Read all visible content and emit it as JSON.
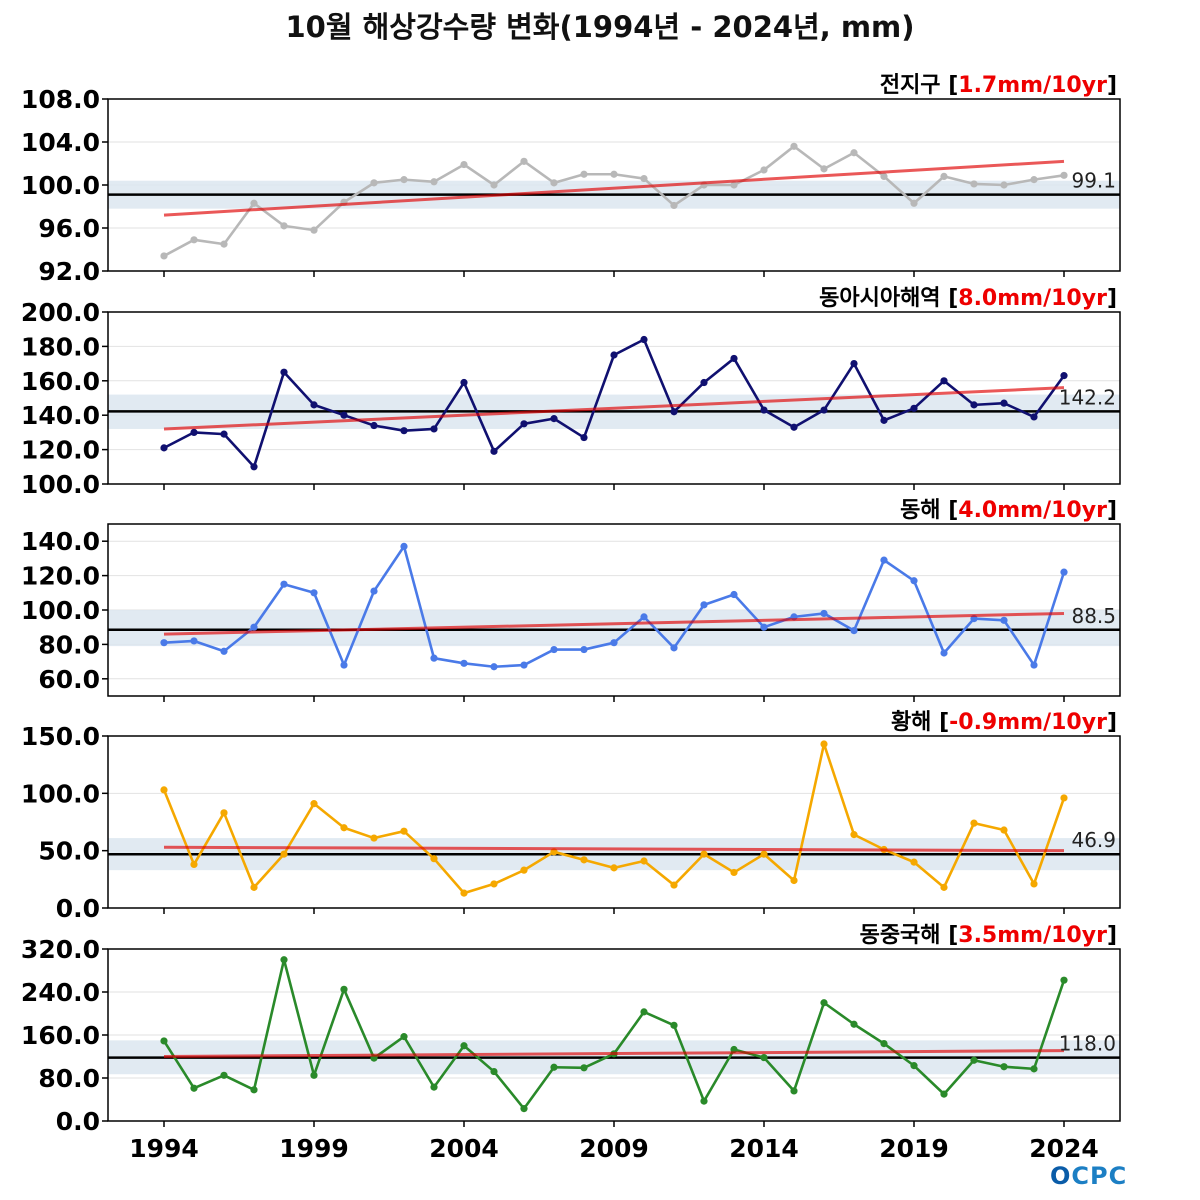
{
  "title": "10월 해상강수량 변화(1994년 - 2024년, mm)",
  "logo_text": "CPC",
  "colors": {
    "trend": "#e00000",
    "mean_line": "#000000",
    "band": "#dce6f0",
    "trend_text": "#ee0000"
  },
  "chart_data": [
    {
      "type": "line",
      "name": "전지구",
      "trend_label": "1.7mm/10yr",
      "color": "#b8b8b8",
      "ylim": [
        92,
        108
      ],
      "yticks": [
        92,
        96,
        100,
        104,
        108
      ],
      "mean": 99.1,
      "mean_label": "99.1",
      "band": [
        97.8,
        100.4
      ],
      "trend": [
        97.2,
        102.2
      ],
      "x": [
        1994,
        1995,
        1996,
        1997,
        1998,
        1999,
        2000,
        2001,
        2002,
        2003,
        2004,
        2005,
        2006,
        2007,
        2008,
        2009,
        2010,
        2011,
        2012,
        2013,
        2014,
        2015,
        2016,
        2017,
        2018,
        2019,
        2020,
        2021,
        2022,
        2023,
        2024
      ],
      "values": [
        93.4,
        94.9,
        94.5,
        98.3,
        96.2,
        95.8,
        98.4,
        100.2,
        100.5,
        100.3,
        101.9,
        100.0,
        102.2,
        100.2,
        101.0,
        101.0,
        100.6,
        98.1,
        100.0,
        100.0,
        101.4,
        103.6,
        101.5,
        103.0,
        100.8,
        98.3,
        100.8,
        100.1,
        100.0,
        100.5,
        100.9
      ]
    },
    {
      "type": "line",
      "name": "동아시아해역",
      "trend_label": "8.0mm/10yr",
      "color": "#101070",
      "ylim": [
        100,
        200
      ],
      "yticks": [
        100,
        120,
        140,
        160,
        180,
        200
      ],
      "mean": 142.2,
      "mean_label": "142.2",
      "band": [
        132,
        152
      ],
      "trend": [
        132,
        156
      ],
      "x": [
        1994,
        1995,
        1996,
        1997,
        1998,
        1999,
        2000,
        2001,
        2002,
        2003,
        2004,
        2005,
        2006,
        2007,
        2008,
        2009,
        2010,
        2011,
        2012,
        2013,
        2014,
        2015,
        2016,
        2017,
        2018,
        2019,
        2020,
        2021,
        2022,
        2023,
        2024
      ],
      "values": [
        121,
        130,
        129,
        110,
        165,
        146,
        140,
        134,
        131,
        132,
        159,
        119,
        135,
        138,
        127,
        175,
        184,
        142,
        159,
        173,
        143,
        133,
        143,
        170,
        137,
        144,
        160,
        146,
        147,
        139,
        163
      ]
    },
    {
      "type": "line",
      "name": "동해",
      "trend_label": "4.0mm/10yr",
      "color": "#4a7ae8",
      "ylim": [
        50,
        150
      ],
      "yticks": [
        60,
        80,
        100,
        120,
        140
      ],
      "mean": 88.5,
      "mean_label": "88.5",
      "band": [
        79,
        100
      ],
      "trend": [
        86,
        98
      ],
      "x": [
        1994,
        1995,
        1996,
        1997,
        1998,
        1999,
        2000,
        2001,
        2002,
        2003,
        2004,
        2005,
        2006,
        2007,
        2008,
        2009,
        2010,
        2011,
        2012,
        2013,
        2014,
        2015,
        2016,
        2017,
        2018,
        2019,
        2020,
        2021,
        2022,
        2023,
        2024
      ],
      "values": [
        81,
        82,
        76,
        90,
        115,
        110,
        68,
        111,
        137,
        72,
        69,
        67,
        68,
        77,
        77,
        81,
        96,
        78,
        103,
        109,
        90,
        96,
        98,
        88,
        129,
        117,
        75,
        95,
        94,
        68,
        122
      ]
    },
    {
      "type": "line",
      "name": "황해",
      "trend_label": "-0.9mm/10yr",
      "color": "#f5a800",
      "ylim": [
        0,
        150
      ],
      "yticks": [
        0,
        50,
        100,
        150
      ],
      "mean": 46.9,
      "mean_label": "46.9",
      "band": [
        33,
        61
      ],
      "trend": [
        53,
        50
      ],
      "x": [
        1994,
        1995,
        1996,
        1997,
        1998,
        1999,
        2000,
        2001,
        2002,
        2003,
        2004,
        2005,
        2006,
        2007,
        2008,
        2009,
        2010,
        2011,
        2012,
        2013,
        2014,
        2015,
        2016,
        2017,
        2018,
        2019,
        2020,
        2021,
        2022,
        2023,
        2024
      ],
      "values": [
        103,
        38,
        83,
        18,
        47,
        91,
        70,
        61,
        67,
        43,
        13,
        21,
        33,
        49,
        42,
        35,
        41,
        20,
        47,
        31,
        47,
        24,
        143,
        64,
        51,
        40,
        18,
        74,
        68,
        21,
        96
      ]
    },
    {
      "type": "line",
      "name": "동중국해",
      "trend_label": "3.5mm/10yr",
      "color": "#2a8a2a",
      "ylim": [
        0,
        320
      ],
      "yticks": [
        0,
        80,
        160,
        240,
        320
      ],
      "mean": 118.0,
      "mean_label": "118.0",
      "band": [
        87,
        150
      ],
      "trend": [
        120,
        131
      ],
      "x": [
        1994,
        1995,
        1996,
        1997,
        1998,
        1999,
        2000,
        2001,
        2002,
        2003,
        2004,
        2005,
        2006,
        2007,
        2008,
        2009,
        2010,
        2011,
        2012,
        2013,
        2014,
        2015,
        2016,
        2017,
        2018,
        2019,
        2020,
        2021,
        2022,
        2023,
        2024
      ],
      "values": [
        149,
        61,
        85,
        58,
        300,
        85,
        245,
        117,
        157,
        63,
        140,
        92,
        23,
        100,
        99,
        125,
        203,
        178,
        37,
        133,
        118,
        56,
        220,
        180,
        144,
        103,
        50,
        113,
        101,
        97,
        262
      ]
    }
  ],
  "x_axis": {
    "ticks": [
      1994,
      1999,
      2004,
      2009,
      2014,
      2019,
      2024
    ],
    "xlim": [
      1994,
      2024
    ]
  }
}
